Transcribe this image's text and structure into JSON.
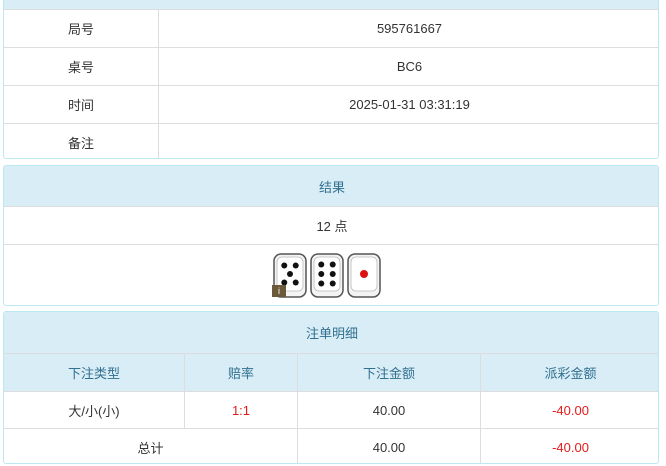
{
  "info": {
    "rows": [
      {
        "label": "局号",
        "value": "595761667"
      },
      {
        "label": "桌号",
        "value": "BC6"
      },
      {
        "label": "时间",
        "value": "2025-01-31 03:31:19"
      },
      {
        "label": "备注"
      }
    ]
  },
  "result": {
    "title": "结果",
    "points": "12 点",
    "dice": [
      5,
      6,
      1
    ],
    "badge": "i"
  },
  "bets": {
    "title": "注单明细",
    "columns": [
      "下注类型",
      "赔率",
      "下注金额",
      "派彩金额"
    ],
    "rows": [
      [
        "大/小(小)",
        "1:1",
        "40.00",
        "-40.00"
      ]
    ],
    "total": {
      "label": "总计",
      "bet": "40.00",
      "payout": "-40.00"
    }
  }
}
